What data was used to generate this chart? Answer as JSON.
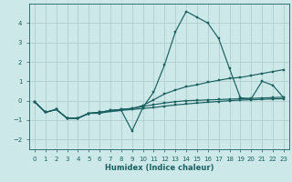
{
  "xlabel": "Humidex (Indice chaleur)",
  "background_color": "#cce8e8",
  "grid_color": "#b0cece",
  "line_color": "#1a6060",
  "xlim": [
    -0.5,
    23.5
  ],
  "ylim": [
    -2.5,
    5.0
  ],
  "xticks": [
    0,
    1,
    2,
    3,
    4,
    5,
    6,
    7,
    8,
    9,
    10,
    11,
    12,
    13,
    14,
    15,
    16,
    17,
    18,
    19,
    20,
    21,
    22,
    23
  ],
  "yticks": [
    -2,
    -1,
    0,
    1,
    2,
    3,
    4
  ],
  "series": [
    {
      "x": [
        0,
        1,
        2,
        3,
        4,
        5,
        6,
        7,
        8,
        9,
        10,
        11,
        12,
        13,
        14,
        15,
        16,
        17,
        18,
        19,
        20,
        21,
        22,
        23
      ],
      "y": [
        -0.05,
        -0.6,
        -0.45,
        -0.9,
        -0.9,
        -0.65,
        -0.65,
        -0.55,
        -0.5,
        -1.55,
        -0.35,
        0.45,
        1.85,
        3.55,
        4.6,
        4.3,
        4.0,
        3.2,
        1.65,
        0.15,
        0.1,
        1.0,
        0.8,
        0.15
      ]
    },
    {
      "x": [
        0,
        1,
        2,
        3,
        4,
        5,
        6,
        7,
        8,
        9,
        10,
        11,
        12,
        13,
        14,
        15,
        16,
        17,
        18,
        19,
        20,
        21,
        22,
        23
      ],
      "y": [
        -0.05,
        -0.6,
        -0.45,
        -0.9,
        -0.9,
        -0.65,
        -0.6,
        -0.5,
        -0.45,
        -0.4,
        -0.25,
        0.05,
        0.35,
        0.55,
        0.72,
        0.82,
        0.95,
        1.05,
        1.15,
        1.2,
        1.3,
        1.4,
        1.5,
        1.6
      ]
    },
    {
      "x": [
        0,
        1,
        2,
        3,
        4,
        5,
        6,
        7,
        8,
        9,
        10,
        11,
        12,
        13,
        14,
        15,
        16,
        17,
        18,
        19,
        20,
        21,
        22,
        23
      ],
      "y": [
        -0.05,
        -0.6,
        -0.45,
        -0.9,
        -0.9,
        -0.65,
        -0.6,
        -0.5,
        -0.45,
        -0.4,
        -0.3,
        -0.2,
        -0.12,
        -0.05,
        0.0,
        0.02,
        0.04,
        0.06,
        0.08,
        0.1,
        0.12,
        0.14,
        0.16,
        0.18
      ]
    },
    {
      "x": [
        0,
        1,
        2,
        3,
        4,
        5,
        6,
        7,
        8,
        9,
        10,
        11,
        12,
        13,
        14,
        15,
        16,
        17,
        18,
        19,
        20,
        21,
        22,
        23
      ],
      "y": [
        -0.05,
        -0.6,
        -0.45,
        -0.9,
        -0.9,
        -0.65,
        -0.6,
        -0.55,
        -0.5,
        -0.45,
        -0.4,
        -0.35,
        -0.28,
        -0.22,
        -0.17,
        -0.12,
        -0.08,
        -0.04,
        0.0,
        0.03,
        0.05,
        0.07,
        0.09,
        0.1
      ]
    }
  ]
}
